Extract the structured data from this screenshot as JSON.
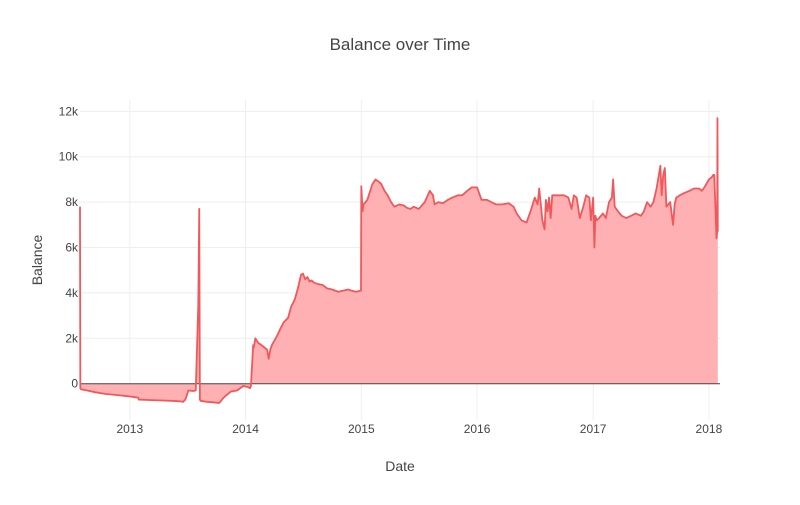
{
  "chart_data": {
    "type": "area",
    "title": "Balance over Time",
    "xlabel": "Date",
    "ylabel": "Balance",
    "xlim": [
      "2012-07-28",
      "2018-02-05"
    ],
    "ylim": [
      -1600,
      12500
    ],
    "x_ticks": [
      {
        "date": "2013-01-01",
        "label": "2013"
      },
      {
        "date": "2014-01-01",
        "label": "2014"
      },
      {
        "date": "2015-01-01",
        "label": "2015"
      },
      {
        "date": "2016-01-01",
        "label": "2016"
      },
      {
        "date": "2017-01-01",
        "label": "2017"
      },
      {
        "date": "2018-01-01",
        "label": "2018"
      }
    ],
    "y_ticks": [
      {
        "value": 0,
        "label": "0"
      },
      {
        "value": 2000,
        "label": "2k"
      },
      {
        "value": 4000,
        "label": "4k"
      },
      {
        "value": 6000,
        "label": "6k"
      },
      {
        "value": 8000,
        "label": "8k"
      },
      {
        "value": 10000,
        "label": "10k"
      },
      {
        "value": 12000,
        "label": "12k"
      }
    ],
    "grid": true,
    "colors": {
      "line": "#f0585c",
      "fill": "#ffb0b2",
      "zero_line": "#444444"
    },
    "series": [
      {
        "x": [
          "2012-07-28",
          "2012-07-29",
          "2012-08-01",
          "2012-08-20",
          "2012-09-15",
          "2012-10-15",
          "2012-11-20",
          "2012-12-25",
          "2013-01-20",
          "2013-01-28",
          "2013-01-29",
          "2013-03-01",
          "2013-04-15",
          "2013-05-20",
          "2013-06-10",
          "2013-06-18",
          "2013-06-25",
          "2013-07-05",
          "2013-07-20",
          "2013-07-28",
          "2013-08-05",
          "2013-08-08",
          "2013-08-10",
          "2013-08-12",
          "2013-08-15",
          "2013-09-01",
          "2013-09-20",
          "2013-10-10",
          "2013-10-25",
          "2013-11-15",
          "2013-12-05",
          "2013-12-25",
          "2014-01-10",
          "2014-01-15",
          "2014-01-18",
          "2014-01-25",
          "2014-01-27",
          "2014-02-01",
          "2014-02-10",
          "2014-02-20",
          "2014-03-01",
          "2014-03-10",
          "2014-03-15",
          "2014-03-20",
          "2014-03-25",
          "2014-04-10",
          "2014-04-20",
          "2014-05-01",
          "2014-05-15",
          "2014-05-25",
          "2014-06-05",
          "2014-06-15",
          "2014-06-25",
          "2014-07-01",
          "2014-07-08",
          "2014-07-15",
          "2014-07-22",
          "2014-07-28",
          "2014-08-05",
          "2014-08-15",
          "2014-09-01",
          "2014-09-15",
          "2014-10-01",
          "2014-10-20",
          "2014-11-05",
          "2014-11-20",
          "2014-12-01",
          "2014-12-15",
          "2014-12-31",
          "2015-01-01",
          "2015-01-05",
          "2015-01-08",
          "2015-01-20",
          "2015-02-05",
          "2015-02-15",
          "2015-02-25",
          "2015-03-05",
          "2015-03-15",
          "2015-03-25",
          "2015-04-05",
          "2015-04-15",
          "2015-05-01",
          "2015-05-15",
          "2015-05-25",
          "2015-06-05",
          "2015-06-15",
          "2015-07-01",
          "2015-07-20",
          "2015-08-05",
          "2015-08-15",
          "2015-08-20",
          "2015-09-01",
          "2015-09-15",
          "2015-10-01",
          "2015-10-15",
          "2015-11-01",
          "2015-11-15",
          "2015-12-01",
          "2015-12-15",
          "2016-01-01",
          "2016-01-10",
          "2016-01-15",
          "2016-02-01",
          "2016-02-15",
          "2016-03-01",
          "2016-03-20",
          "2016-04-10",
          "2016-04-25",
          "2016-05-05",
          "2016-05-20",
          "2016-06-05",
          "2016-06-20",
          "2016-07-01",
          "2016-07-10",
          "2016-07-15",
          "2016-07-20",
          "2016-07-25",
          "2016-08-01",
          "2016-08-05",
          "2016-08-10",
          "2016-08-15",
          "2016-08-20",
          "2016-08-25",
          "2016-09-01",
          "2016-09-15",
          "2016-10-01",
          "2016-10-15",
          "2016-10-25",
          "2016-11-01",
          "2016-11-10",
          "2016-11-20",
          "2016-12-01",
          "2016-12-10",
          "2016-12-20",
          "2016-12-25",
          "2017-01-01",
          "2017-01-05",
          "2017-01-08",
          "2017-01-12",
          "2017-01-20",
          "2017-02-01",
          "2017-02-10",
          "2017-02-20",
          "2017-03-01",
          "2017-03-05",
          "2017-03-10",
          "2017-03-20",
          "2017-04-01",
          "2017-04-15",
          "2017-05-01",
          "2017-05-15",
          "2017-06-01",
          "2017-06-10",
          "2017-06-20",
          "2017-07-01",
          "2017-07-10",
          "2017-07-20",
          "2017-08-01",
          "2017-08-05",
          "2017-08-10",
          "2017-08-15",
          "2017-08-20",
          "2017-09-01",
          "2017-09-10",
          "2017-09-15",
          "2017-09-20",
          "2017-10-01",
          "2017-10-15",
          "2017-11-01",
          "2017-11-15",
          "2017-12-01",
          "2017-12-10",
          "2017-12-20",
          "2018-01-01",
          "2018-01-10",
          "2018-01-15",
          "2018-01-18",
          "2018-01-22",
          "2018-01-25",
          "2018-01-27",
          "2018-01-28",
          "2018-01-29"
        ],
        "y": [
          7800,
          -200,
          -250,
          -300,
          -380,
          -450,
          -500,
          -550,
          -600,
          -620,
          -700,
          -720,
          -740,
          -760,
          -780,
          -800,
          -700,
          -300,
          -320,
          -300,
          3500,
          7700,
          -700,
          -750,
          -760,
          -800,
          -820,
          -850,
          -600,
          -350,
          -300,
          -100,
          -150,
          -200,
          -100,
          1700,
          1600,
          2000,
          1800,
          1700,
          1600,
          1500,
          1100,
          1500,
          1700,
          2100,
          2400,
          2700,
          2900,
          3400,
          3700,
          4200,
          4800,
          4850,
          4600,
          4700,
          4500,
          4550,
          4450,
          4400,
          4350,
          4200,
          4150,
          4050,
          4100,
          4150,
          4100,
          4050,
          4100,
          8700,
          7600,
          7900,
          8100,
          8800,
          9000,
          8900,
          8800,
          8500,
          8300,
          8000,
          7800,
          7900,
          7850,
          7750,
          7700,
          7800,
          7700,
          8000,
          8500,
          8300,
          7900,
          8000,
          7950,
          8100,
          8200,
          8300,
          8300,
          8500,
          8650,
          8650,
          8300,
          8100,
          8100,
          8000,
          7900,
          7900,
          7950,
          7800,
          7500,
          7200,
          7100,
          7700,
          8200,
          7900,
          8600,
          7900,
          7200,
          6800,
          8100,
          7600,
          8200,
          7300,
          8300,
          8300,
          8300,
          8300,
          8200,
          7700,
          8300,
          8200,
          7300,
          7800,
          8300,
          8200,
          7200,
          8200,
          6000,
          7400,
          7200,
          7300,
          7500,
          7300,
          8000,
          8200,
          9000,
          7800,
          7600,
          7400,
          7300,
          7400,
          7500,
          7400,
          7600,
          8000,
          7800,
          8000,
          8600,
          9600,
          8300,
          9200,
          9500,
          7800,
          8000,
          7000,
          7900,
          8200,
          8300,
          8400,
          8500,
          8600,
          8600,
          8500,
          8700,
          9000,
          9100,
          9200,
          9200,
          7600,
          6400,
          6700,
          11700,
          6700
        ]
      }
    ]
  }
}
